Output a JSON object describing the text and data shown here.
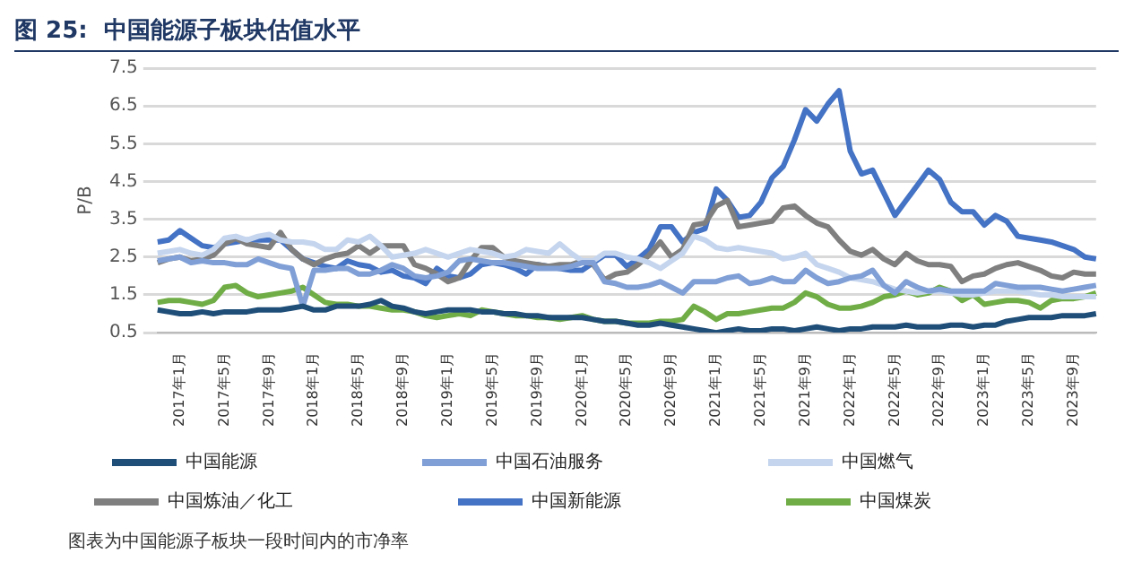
{
  "chart_data": {
    "type": "line",
    "title": "图 25:  中国能源子板块估值水平",
    "ylabel": "P/B",
    "categories": [
      null,
      null,
      "2017年1月",
      null,
      null,
      null,
      "2017年5月",
      null,
      null,
      null,
      "2017年9月",
      null,
      null,
      null,
      "2018年1月",
      null,
      null,
      null,
      "2018年5月",
      null,
      null,
      null,
      "2018年9月",
      null,
      null,
      null,
      "2019年1月",
      null,
      null,
      null,
      "2019年5月",
      null,
      null,
      null,
      "2019年9月",
      null,
      null,
      null,
      "2020年1月",
      null,
      null,
      null,
      "2020年5月",
      null,
      null,
      null,
      "2020年9月",
      null,
      null,
      null,
      "2021年1月",
      null,
      null,
      null,
      "2021年5月",
      null,
      null,
      null,
      "2021年9月",
      null,
      null,
      null,
      "2022年1月",
      null,
      null,
      null,
      "2022年5月",
      null,
      null,
      null,
      "2022年9月",
      null,
      null,
      null,
      "2023年1月",
      null,
      null,
      null,
      "2023年5月",
      null,
      null,
      null,
      "2023年9月",
      null,
      null
    ],
    "series": [
      {
        "name": "中国能源",
        "color": "#1f4e79",
        "values": [
          1.1,
          1.05,
          1.0,
          1.0,
          1.05,
          1.0,
          1.05,
          1.05,
          1.05,
          1.1,
          1.1,
          1.1,
          1.15,
          1.2,
          1.1,
          1.1,
          1.2,
          1.2,
          1.2,
          1.25,
          1.35,
          1.2,
          1.15,
          1.05,
          1.0,
          1.05,
          1.1,
          1.1,
          1.1,
          1.05,
          1.05,
          1.0,
          1.0,
          0.95,
          0.95,
          0.9,
          0.9,
          0.9,
          0.9,
          0.85,
          0.8,
          0.8,
          0.75,
          0.7,
          0.7,
          0.75,
          0.7,
          0.65,
          0.6,
          0.55,
          0.5,
          0.55,
          0.6,
          0.55,
          0.55,
          0.6,
          0.6,
          0.55,
          0.6,
          0.65,
          0.6,
          0.55,
          0.6,
          0.6,
          0.65,
          0.65,
          0.65,
          0.7,
          0.65,
          0.65,
          0.65,
          0.7,
          0.7,
          0.65,
          0.7,
          0.7,
          0.8,
          0.85,
          0.9,
          0.9,
          0.9,
          0.95,
          0.95,
          0.95,
          1.0
        ]
      },
      {
        "name": "中国石油服务",
        "color": "#7f9fd6",
        "values": [
          2.4,
          2.45,
          2.5,
          2.35,
          2.4,
          2.35,
          2.35,
          2.3,
          2.3,
          2.45,
          2.35,
          2.25,
          2.2,
          1.2,
          2.15,
          2.15,
          2.2,
          2.2,
          2.05,
          2.05,
          2.15,
          2.3,
          2.2,
          2.0,
          1.95,
          2.0,
          2.1,
          2.4,
          2.45,
          2.4,
          2.35,
          2.35,
          2.3,
          2.25,
          2.2,
          2.2,
          2.2,
          2.25,
          2.35,
          2.35,
          1.85,
          1.8,
          1.7,
          1.7,
          1.75,
          1.85,
          1.7,
          1.55,
          1.85,
          1.85,
          1.85,
          1.95,
          2.0,
          1.8,
          1.85,
          1.95,
          1.85,
          1.85,
          2.15,
          1.95,
          1.8,
          1.85,
          1.95,
          2.0,
          2.15,
          1.75,
          1.55,
          1.85,
          1.7,
          1.6,
          1.65,
          1.6,
          1.6,
          1.6,
          1.6,
          1.8,
          1.75,
          1.7,
          1.7,
          1.7,
          1.65,
          1.6,
          1.65,
          1.7,
          1.75
        ]
      },
      {
        "name": "中国燃气",
        "color": "#c5d5ee",
        "values": [
          2.6,
          2.65,
          2.7,
          2.6,
          2.55,
          2.7,
          3.0,
          3.05,
          2.95,
          3.05,
          3.1,
          2.95,
          2.9,
          2.9,
          2.85,
          2.7,
          2.7,
          2.95,
          2.9,
          3.05,
          2.8,
          2.5,
          2.55,
          2.6,
          2.7,
          2.6,
          2.5,
          2.6,
          2.7,
          2.65,
          2.6,
          2.5,
          2.55,
          2.7,
          2.65,
          2.6,
          2.85,
          2.6,
          2.4,
          2.4,
          2.6,
          2.6,
          2.5,
          2.45,
          2.35,
          2.2,
          2.4,
          2.6,
          3.05,
          2.95,
          2.75,
          2.7,
          2.75,
          2.7,
          2.65,
          2.6,
          2.45,
          2.5,
          2.6,
          2.3,
          2.2,
          2.1,
          1.95,
          1.9,
          1.85,
          1.75,
          1.65,
          1.6,
          1.55,
          1.6,
          1.6,
          1.55,
          1.5,
          1.5,
          1.55,
          1.6,
          1.6,
          1.6,
          1.55,
          1.5,
          1.5,
          1.45,
          1.45,
          1.45,
          1.45
        ]
      },
      {
        "name": "中国炼油／化工",
        "color": "#7f7f7f",
        "values": [
          2.35,
          2.45,
          2.5,
          2.4,
          2.45,
          2.55,
          2.85,
          3.0,
          2.85,
          2.8,
          2.75,
          3.15,
          2.7,
          2.45,
          2.3,
          2.45,
          2.55,
          2.6,
          2.8,
          2.6,
          2.8,
          2.8,
          2.8,
          2.3,
          2.2,
          2.05,
          1.85,
          1.95,
          2.4,
          2.75,
          2.75,
          2.5,
          2.4,
          2.35,
          2.3,
          2.25,
          2.3,
          2.3,
          2.4,
          2.3,
          1.9,
          2.05,
          2.1,
          2.3,
          2.55,
          2.9,
          2.5,
          2.7,
          3.35,
          3.4,
          3.85,
          4.0,
          3.3,
          3.35,
          3.4,
          3.45,
          3.8,
          3.85,
          3.6,
          3.4,
          3.3,
          2.95,
          2.65,
          2.55,
          2.7,
          2.45,
          2.3,
          2.6,
          2.4,
          2.3,
          2.3,
          2.25,
          1.85,
          2.0,
          2.05,
          2.2,
          2.3,
          2.35,
          2.25,
          2.15,
          2.0,
          1.95,
          2.1,
          2.05,
          2.05
        ]
      },
      {
        "name": "中国新能源",
        "color": "#4472c4",
        "values": [
          2.9,
          2.95,
          3.2,
          3.0,
          2.8,
          2.75,
          2.85,
          2.9,
          2.95,
          2.95,
          2.95,
          2.95,
          2.7,
          2.45,
          2.35,
          2.25,
          2.2,
          2.4,
          2.3,
          2.25,
          2.1,
          2.15,
          2.0,
          1.95,
          1.8,
          2.2,
          2.0,
          1.95,
          2.05,
          2.3,
          2.35,
          2.3,
          2.2,
          2.05,
          2.3,
          2.25,
          2.2,
          2.15,
          2.15,
          2.35,
          2.55,
          2.55,
          2.25,
          2.45,
          2.7,
          3.3,
          3.3,
          2.9,
          3.15,
          3.25,
          4.3,
          4.0,
          3.55,
          3.6,
          3.95,
          4.6,
          4.9,
          5.6,
          6.4,
          6.1,
          6.55,
          6.9,
          5.3,
          4.7,
          4.8,
          4.2,
          3.6,
          4.0,
          4.4,
          4.8,
          4.55,
          3.95,
          3.7,
          3.7,
          3.35,
          3.6,
          3.45,
          3.05,
          3.0,
          2.95,
          2.9,
          2.8,
          2.7,
          2.5,
          2.45
        ]
      },
      {
        "name": "中国煤炭",
        "color": "#70ad47",
        "values": [
          1.3,
          1.35,
          1.35,
          1.3,
          1.25,
          1.35,
          1.7,
          1.75,
          1.55,
          1.45,
          1.5,
          1.55,
          1.6,
          1.7,
          1.5,
          1.3,
          1.25,
          1.25,
          1.2,
          1.2,
          1.15,
          1.1,
          1.1,
          1.05,
          0.95,
          0.9,
          0.95,
          1.0,
          0.95,
          1.1,
          1.05,
          1.0,
          0.95,
          0.95,
          0.9,
          0.9,
          0.85,
          0.9,
          0.95,
          0.85,
          0.8,
          0.8,
          0.75,
          0.75,
          0.75,
          0.8,
          0.8,
          0.85,
          1.2,
          1.05,
          0.85,
          1.0,
          1.0,
          1.05,
          1.1,
          1.15,
          1.15,
          1.3,
          1.55,
          1.45,
          1.25,
          1.15,
          1.15,
          1.2,
          1.3,
          1.45,
          1.5,
          1.6,
          1.5,
          1.55,
          1.7,
          1.6,
          1.35,
          1.5,
          1.25,
          1.3,
          1.35,
          1.35,
          1.3,
          1.15,
          1.35,
          1.4,
          1.4,
          1.45,
          1.55
        ]
      }
    ],
    "ylim": [
      0.5,
      7.5
    ],
    "yticks": [
      0.5,
      1.5,
      2.5,
      3.5,
      4.5,
      5.5,
      6.5,
      7.5
    ],
    "grid": "y",
    "legend": "bottom",
    "marker": "none",
    "line_style": "solid",
    "annotations": [
      "图表为中国能源子板块一段时间内的市净率"
    ]
  }
}
